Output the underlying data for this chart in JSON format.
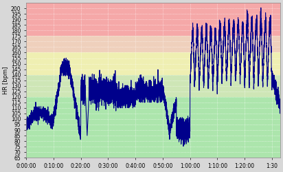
{
  "title": "",
  "ylabel": "HR [bpm]",
  "xlabel": "",
  "ylim": [
    65,
    205
  ],
  "xlim_min": 0,
  "xlim_max": 5580,
  "yticks": [
    65,
    70,
    75,
    80,
    85,
    90,
    95,
    100,
    105,
    110,
    115,
    120,
    125,
    130,
    135,
    140,
    145,
    150,
    155,
    160,
    165,
    170,
    175,
    180,
    185,
    190,
    195,
    200
  ],
  "xtick_labels": [
    "0:00:00",
    "0:10:00",
    "0:20:00",
    "0:30:00",
    "0:40:00",
    "0:50:00",
    "1:00:00",
    "1:10:00",
    "1:20:00",
    "1:30"
  ],
  "xtick_positions": [
    0,
    600,
    1200,
    1800,
    2400,
    3000,
    3600,
    4200,
    4800,
    5400
  ],
  "zones": [
    {
      "ymin": 65,
      "ymax": 120,
      "color": "#90ee90",
      "alpha": 0.6
    },
    {
      "ymin": 120,
      "ymax": 140,
      "color": "#c8f0a0",
      "alpha": 0.6
    },
    {
      "ymin": 140,
      "ymax": 160,
      "color": "#ffff99",
      "alpha": 0.6
    },
    {
      "ymin": 160,
      "ymax": 175,
      "color": "#ffccaa",
      "alpha": 0.6
    },
    {
      "ymin": 175,
      "ymax": 205,
      "color": "#ff9999",
      "alpha": 0.75
    }
  ],
  "line_color": "#00008b",
  "line_width": 0.8,
  "bg_color": "#d8d8d8",
  "grid_color": "#ffffff",
  "tick_fontsize": 5.5
}
